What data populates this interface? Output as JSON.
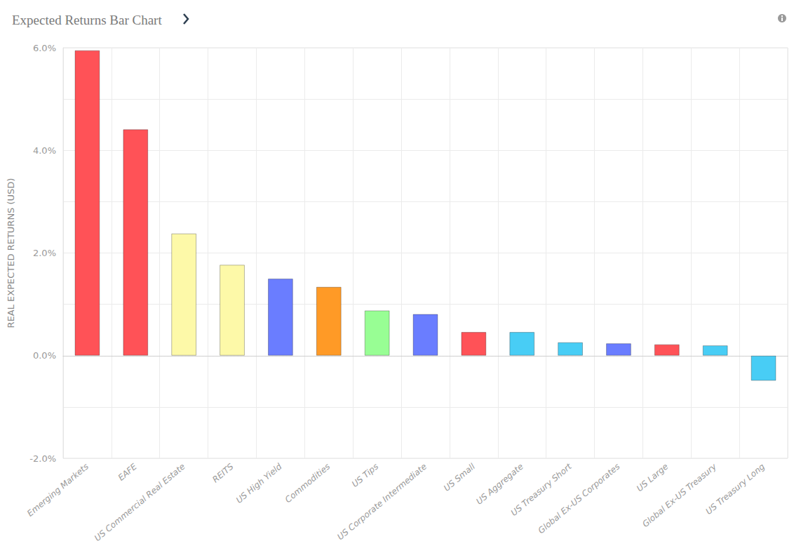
{
  "chart_data": {
    "type": "bar",
    "title": "Expected Returns Bar Chart",
    "y_label": "REAL EXPECTED RETURNS (USD)",
    "categories": [
      "Emerging Markets",
      "EAFE",
      "US Commercial Real Estate",
      "REITS",
      "US High Yield",
      "Commodities",
      "US Tips",
      "US Corporate Intermediate",
      "US Small",
      "US Aggregate",
      "US Treasury Short",
      "Global Ex-US Corporates",
      "US Large",
      "Global Ex-US Treasury",
      "US Treasury Long"
    ],
    "values": [
      5.95,
      4.41,
      2.38,
      1.77,
      1.5,
      1.34,
      0.88,
      0.81,
      0.46,
      0.46,
      0.26,
      0.24,
      0.22,
      0.2,
      -0.49
    ],
    "colors": [
      "#ff5257",
      "#ff5257",
      "#fdf9a8",
      "#fdf9a8",
      "#6a7dff",
      "#ff9a26",
      "#98fe94",
      "#6a7dff",
      "#ff5257",
      "#48cdf5",
      "#48cdf5",
      "#6a7dff",
      "#ff5257",
      "#48cdf5",
      "#48cdf5"
    ],
    "ylim": [
      -2,
      6
    ],
    "yticks": [
      {
        "value": -2,
        "label": "-2.0%"
      },
      {
        "value": 0,
        "label": "0.0%"
      },
      {
        "value": 2,
        "label": "2.0%"
      },
      {
        "value": 4,
        "label": "4.0%"
      },
      {
        "value": 6,
        "label": "6.0%"
      }
    ],
    "grid": true,
    "data_labels": false
  }
}
